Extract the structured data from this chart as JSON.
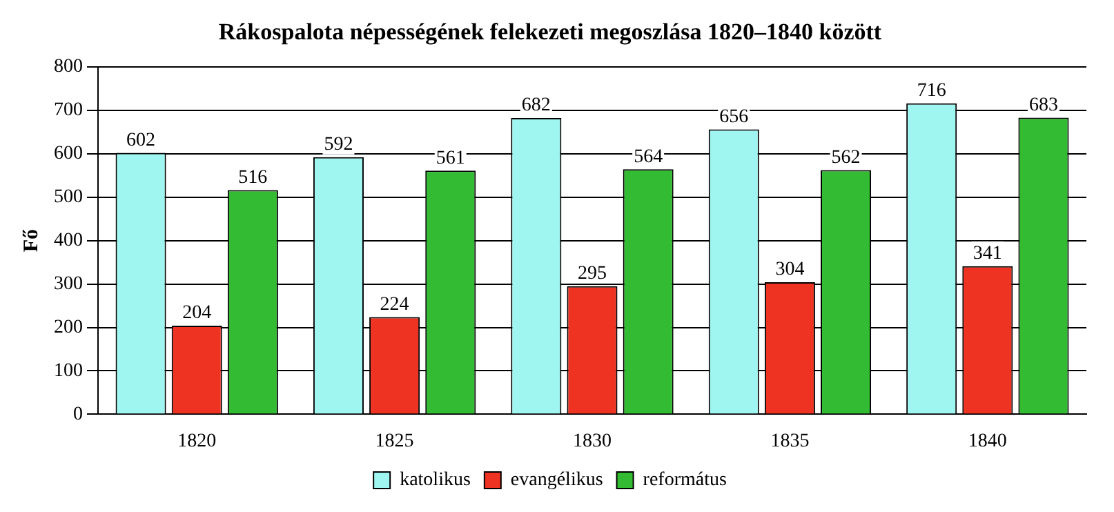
{
  "chart_data": {
    "type": "bar",
    "title": "Rákospalota népességének felekezeti megoszlása 1820–1840 között",
    "ylabel": "Fő",
    "categories": [
      "1820",
      "1825",
      "1830",
      "1835",
      "1840"
    ],
    "series": [
      {
        "name": "katolikus",
        "color": "#9ff5f0",
        "values": [
          602,
          592,
          682,
          656,
          716
        ]
      },
      {
        "name": "evangélikus",
        "color": "#ee3322",
        "values": [
          204,
          224,
          295,
          304,
          341
        ]
      },
      {
        "name": "református",
        "color": "#33bb33",
        "values": [
          516,
          561,
          564,
          562,
          683
        ]
      }
    ],
    "ylim": [
      0,
      800
    ],
    "yticks": [
      0,
      100,
      200,
      300,
      400,
      500,
      600,
      700,
      800
    ],
    "grid": "y",
    "legend": "bottom",
    "data_labels": true
  }
}
